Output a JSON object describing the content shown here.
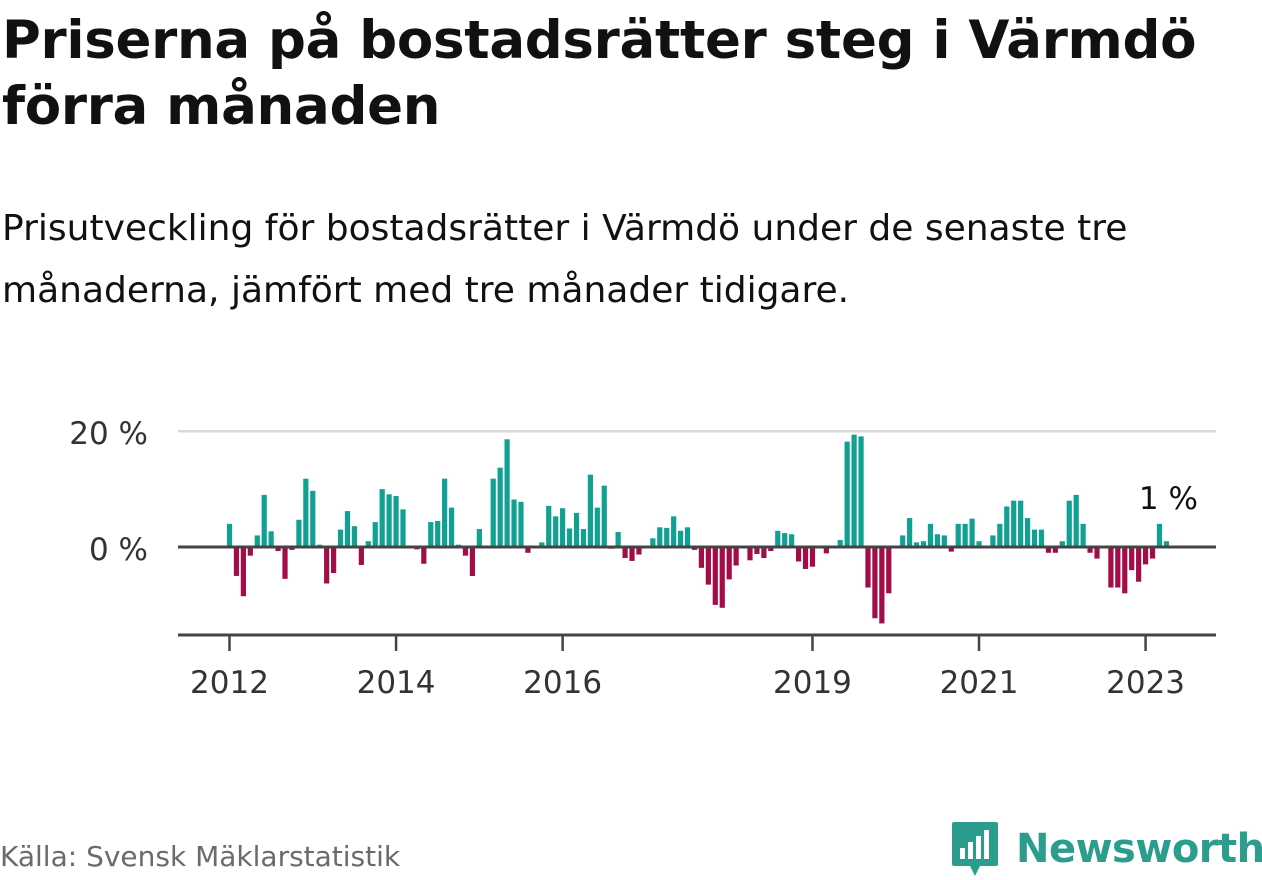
{
  "title": "Priserna på bostadsrätter steg i Värmdö förra månaden",
  "subtitle": "Prisutveckling för bostadsrätter i Värmdö under de senaste tre månaderna, jämfört med tre månader tidigare.",
  "source": "Källa: Svensk Mäklarstatistik",
  "brand": {
    "name": "Newsworthy",
    "icon": "newsworthy-logo-icon"
  },
  "colors": {
    "positive": "#11a192",
    "negative": "#a30d47",
    "zero_line": "#444444",
    "grid": "#d9d9d9",
    "brand": "#2a9d8f"
  },
  "chart_data": {
    "type": "bar",
    "title": "Priserna på bostadsrätter steg i Värmdö förra månaden",
    "xlabel": "",
    "ylabel": "",
    "ylim": [
      -14,
      20
    ],
    "y_ticks": [
      {
        "value": 0,
        "label": "0 %"
      },
      {
        "value": 20,
        "label": "20 %"
      }
    ],
    "x_ticks": [
      {
        "label": "2012",
        "index": 0
      },
      {
        "label": "2014",
        "index": 24
      },
      {
        "label": "2016",
        "index": 48
      },
      {
        "label": "2019",
        "index": 84
      },
      {
        "label": "2021",
        "index": 108
      },
      {
        "label": "2023",
        "index": 132
      }
    ],
    "annotation": {
      "label": "1 %",
      "index": 135
    },
    "start": "2012-01",
    "values": [
      4,
      -5,
      -8.5,
      -1.5,
      2,
      9,
      2.7,
      -0.7,
      -5.5,
      -0.5,
      4.7,
      11.8,
      9.7,
      0.4,
      -6.3,
      -4.5,
      3,
      6.2,
      3.6,
      -3.1,
      1,
      4.3,
      10,
      9.1,
      8.8,
      6.5,
      0,
      -0.4,
      -2.9,
      4.3,
      4.5,
      11.8,
      6.8,
      0.4,
      -1.5,
      -5,
      3.1,
      0,
      11.8,
      13.7,
      18.6,
      8.2,
      7.8,
      -1,
      0,
      0.8,
      7.1,
      5.3,
      6.7,
      3.2,
      5.9,
      3.1,
      12.5,
      6.8,
      10.6,
      -0.3,
      2.6,
      -1.9,
      -2.4,
      -1.3,
      0,
      1.5,
      3.4,
      3.3,
      5.3,
      2.8,
      3.4,
      -0.5,
      -3.6,
      -6.5,
      -10,
      -10.5,
      -5.6,
      -3.2,
      0,
      -2.3,
      -1.2,
      -1.9,
      -0.7,
      2.8,
      2.4,
      2.2,
      -2.5,
      -3.8,
      -3.4,
      0,
      -1.1,
      0,
      1.2,
      18.2,
      19.4,
      19.1,
      -7,
      -12.3,
      -13.2,
      -8,
      0,
      2,
      5,
      0.8,
      1,
      4,
      2.2,
      2,
      -0.8,
      4,
      4,
      4.9,
      1,
      0,
      2,
      4,
      7,
      8,
      8,
      5,
      3,
      3,
      -1,
      -1,
      1,
      8,
      9,
      4,
      -1,
      -2,
      0,
      -7,
      -7,
      -8,
      -4,
      -6,
      -3,
      -2,
      4,
      1
    ]
  }
}
